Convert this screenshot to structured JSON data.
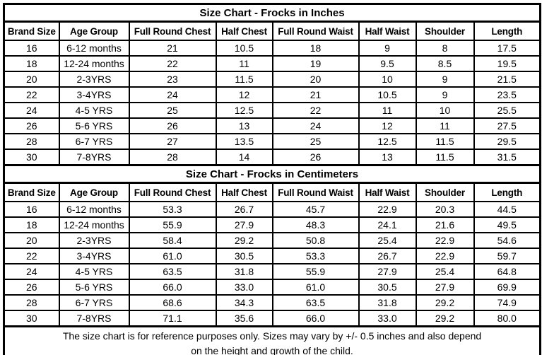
{
  "page": {
    "background": "#ffffff",
    "grid_color": "#000000",
    "text_color": "#000000"
  },
  "chart_data": [
    {
      "type": "table",
      "title": "Size Chart - Frocks in Inches",
      "columns": [
        "Brand Size",
        "Age Group",
        "Full Round Chest",
        "Half Chest",
        "Full Round Waist",
        "Half Waist",
        "Shoulder",
        "Length"
      ],
      "rows": [
        [
          "16",
          "6-12 months",
          "21",
          "10.5",
          "18",
          "9",
          "8",
          "17.5"
        ],
        [
          "18",
          "12-24 months",
          "22",
          "11",
          "19",
          "9.5",
          "8.5",
          "19.5"
        ],
        [
          "20",
          "2-3YRS",
          "23",
          "11.5",
          "20",
          "10",
          "9",
          "21.5"
        ],
        [
          "22",
          "3-4YRS",
          "24",
          "12",
          "21",
          "10.5",
          "9",
          "23.5"
        ],
        [
          "24",
          "4-5 YRS",
          "25",
          "12.5",
          "22",
          "11",
          "10",
          "25.5"
        ],
        [
          "26",
          "5-6 YRS",
          "26",
          "13",
          "24",
          "12",
          "11",
          "27.5"
        ],
        [
          "28",
          "6-7 YRS",
          "27",
          "13.5",
          "25",
          "12.5",
          "11.5",
          "29.5"
        ],
        [
          "30",
          "7-8YRS",
          "28",
          "14",
          "26",
          "13",
          "11.5",
          "31.5"
        ]
      ]
    },
    {
      "type": "table",
      "title": "Size Chart - Frocks in Centimeters",
      "columns": [
        "Brand Size",
        "Age Group",
        "Full Round Chest",
        "Half Chest",
        "Full Round Waist",
        "Half Waist",
        "Shoulder",
        "Length"
      ],
      "rows": [
        [
          "16",
          "6-12 months",
          "53.3",
          "26.7",
          "45.7",
          "22.9",
          "20.3",
          "44.5"
        ],
        [
          "18",
          "12-24 months",
          "55.9",
          "27.9",
          "48.3",
          "24.1",
          "21.6",
          "49.5"
        ],
        [
          "20",
          "2-3YRS",
          "58.4",
          "29.2",
          "50.8",
          "25.4",
          "22.9",
          "54.6"
        ],
        [
          "22",
          "3-4YRS",
          "61.0",
          "30.5",
          "53.3",
          "26.7",
          "22.9",
          "59.7"
        ],
        [
          "24",
          "4-5 YRS",
          "63.5",
          "31.8",
          "55.9",
          "27.9",
          "25.4",
          "64.8"
        ],
        [
          "26",
          "5-6 YRS",
          "66.0",
          "33.0",
          "61.0",
          "30.5",
          "27.9",
          "69.9"
        ],
        [
          "28",
          "6-7 YRS",
          "68.6",
          "34.3",
          "63.5",
          "31.8",
          "29.2",
          "74.9"
        ],
        [
          "30",
          "7-8YRS",
          "71.1",
          "35.6",
          "66.0",
          "33.0",
          "29.2",
          "80.0"
        ]
      ]
    }
  ],
  "footer": {
    "line1": "The size chart is for reference purposes only. Sizes may vary by +/- 0.5 inches and also depend",
    "line2": "on the height and growth of the child."
  }
}
